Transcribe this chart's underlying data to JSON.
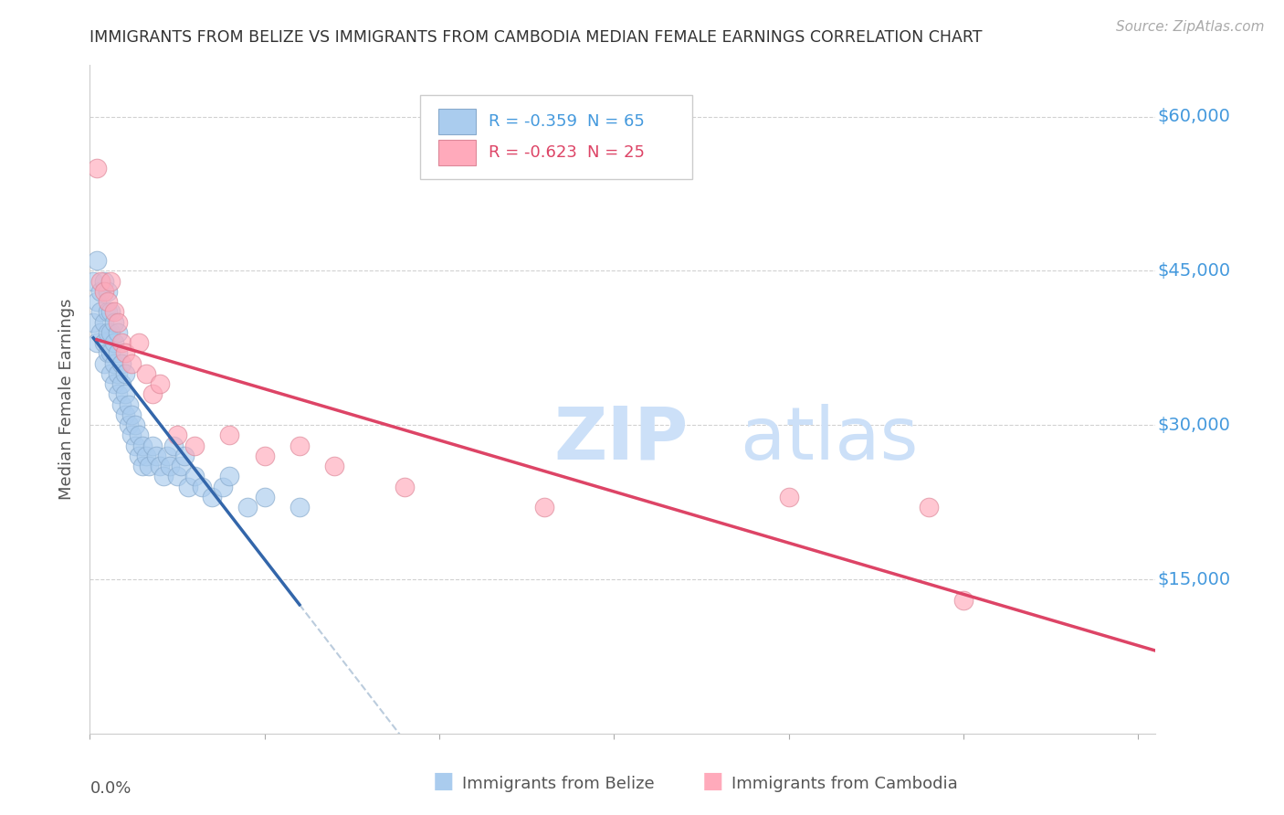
{
  "title": "IMMIGRANTS FROM BELIZE VS IMMIGRANTS FROM CAMBODIA MEDIAN FEMALE EARNINGS CORRELATION CHART",
  "source": "Source: ZipAtlas.com",
  "ylabel": "Median Female Earnings",
  "ymin": 0,
  "ymax": 65000,
  "xmin": 0.0,
  "xmax": 0.305,
  "belize_color": "#aaccee",
  "belize_edge_color": "#88aacc",
  "cambodia_color": "#ffaabb",
  "cambodia_edge_color": "#dd8899",
  "belize_line_color": "#3366aa",
  "cambodia_line_color": "#dd4466",
  "dashed_line_color": "#bbccdd",
  "legend_belize_label_R": "R = -0.359",
  "legend_belize_label_N": "N = 65",
  "legend_cambodia_label_R": "R = -0.623",
  "legend_cambodia_label_N": "N = 25",
  "watermark_color": "#cce0f8",
  "background_color": "#ffffff",
  "grid_color": "#cccccc",
  "title_color": "#333333",
  "right_tick_color": "#4499dd",
  "yticks": [
    15000,
    30000,
    45000,
    60000
  ],
  "ytick_labels": [
    "$15,000",
    "$30,000",
    "$45,000",
    "$60,000"
  ],
  "belize_x": [
    0.001,
    0.001,
    0.002,
    0.002,
    0.002,
    0.003,
    0.003,
    0.003,
    0.004,
    0.004,
    0.004,
    0.004,
    0.005,
    0.005,
    0.005,
    0.005,
    0.006,
    0.006,
    0.006,
    0.006,
    0.007,
    0.007,
    0.007,
    0.007,
    0.008,
    0.008,
    0.008,
    0.008,
    0.009,
    0.009,
    0.009,
    0.01,
    0.01,
    0.01,
    0.011,
    0.011,
    0.012,
    0.012,
    0.013,
    0.013,
    0.014,
    0.014,
    0.015,
    0.015,
    0.016,
    0.017,
    0.018,
    0.019,
    0.02,
    0.021,
    0.022,
    0.023,
    0.024,
    0.025,
    0.026,
    0.027,
    0.028,
    0.03,
    0.032,
    0.035,
    0.038,
    0.04,
    0.045,
    0.05,
    0.06
  ],
  "belize_y": [
    40000,
    44000,
    38000,
    42000,
    46000,
    39000,
    41000,
    43000,
    36000,
    38000,
    40000,
    44000,
    37000,
    39000,
    41000,
    43000,
    35000,
    37000,
    39000,
    41000,
    34000,
    36000,
    38000,
    40000,
    33000,
    35000,
    37000,
    39000,
    32000,
    34000,
    36000,
    31000,
    33000,
    35000,
    30000,
    32000,
    29000,
    31000,
    28000,
    30000,
    27000,
    29000,
    26000,
    28000,
    27000,
    26000,
    28000,
    27000,
    26000,
    25000,
    27000,
    26000,
    28000,
    25000,
    26000,
    27000,
    24000,
    25000,
    24000,
    23000,
    24000,
    25000,
    22000,
    23000,
    22000
  ],
  "cambodia_x": [
    0.002,
    0.003,
    0.004,
    0.005,
    0.006,
    0.007,
    0.008,
    0.009,
    0.01,
    0.012,
    0.014,
    0.016,
    0.018,
    0.02,
    0.025,
    0.03,
    0.04,
    0.05,
    0.06,
    0.07,
    0.09,
    0.13,
    0.2,
    0.24,
    0.25
  ],
  "cambodia_y": [
    55000,
    44000,
    43000,
    42000,
    44000,
    41000,
    40000,
    38000,
    37000,
    36000,
    38000,
    35000,
    33000,
    34000,
    29000,
    28000,
    29000,
    27000,
    28000,
    26000,
    24000,
    22000,
    23000,
    22000,
    13000
  ]
}
